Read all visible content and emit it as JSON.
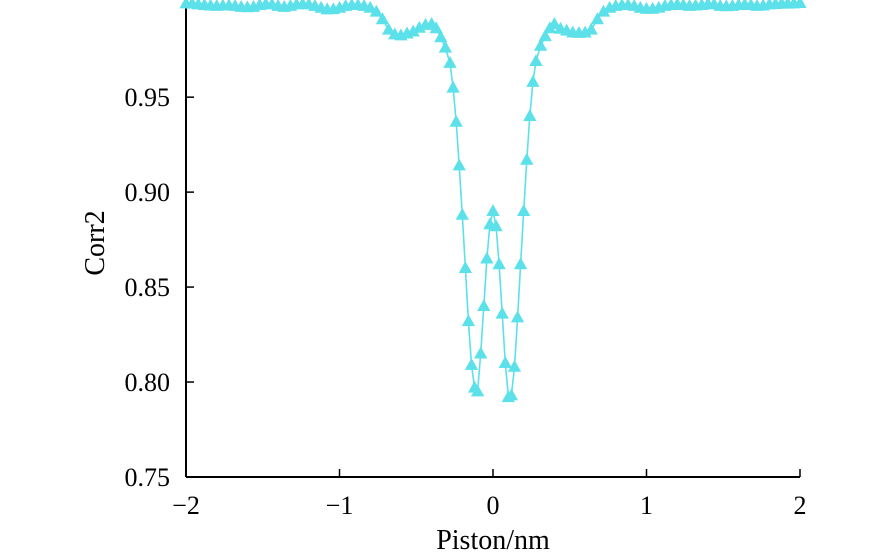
{
  "chart_data": {
    "type": "line",
    "xlabel": "Piston/nm",
    "ylabel": "Corr2",
    "xlim": [
      -2,
      2
    ],
    "ylim": [
      0.75,
      1.0
    ],
    "x_ticks": [
      -2,
      -1,
      0,
      1,
      2
    ],
    "x_tick_labels": [
      "−2",
      "−1",
      "0",
      "1",
      "2"
    ],
    "y_ticks": [
      0.75,
      0.8,
      0.85,
      0.9,
      0.95
    ],
    "y_tick_labels": [
      "0.75",
      "0.80",
      "0.85",
      "0.90",
      "0.95"
    ],
    "grid": false,
    "series": [
      {
        "color": "#5ce1ea",
        "marker": "triangle",
        "x": [
          -2.0,
          -1.96,
          -1.92,
          -1.88,
          -1.84,
          -1.8,
          -1.76,
          -1.72,
          -1.68,
          -1.64,
          -1.6,
          -1.56,
          -1.52,
          -1.48,
          -1.44,
          -1.4,
          -1.36,
          -1.32,
          -1.28,
          -1.24,
          -1.2,
          -1.16,
          -1.12,
          -1.08,
          -1.04,
          -1.0,
          -0.96,
          -0.92,
          -0.88,
          -0.84,
          -0.8,
          -0.76,
          -0.72,
          -0.68,
          -0.64,
          -0.6,
          -0.56,
          -0.52,
          -0.48,
          -0.44,
          -0.4,
          -0.37,
          -0.34,
          -0.31,
          -0.28,
          -0.26,
          -0.24,
          -0.22,
          -0.2,
          -0.18,
          -0.16,
          -0.14,
          -0.12,
          -0.1,
          -0.08,
          -0.06,
          -0.04,
          -0.02,
          0.0,
          0.02,
          0.04,
          0.06,
          0.08,
          0.1,
          0.12,
          0.14,
          0.16,
          0.18,
          0.2,
          0.22,
          0.24,
          0.26,
          0.28,
          0.31,
          0.34,
          0.37,
          0.4,
          0.44,
          0.48,
          0.52,
          0.56,
          0.6,
          0.64,
          0.68,
          0.72,
          0.76,
          0.8,
          0.84,
          0.88,
          0.92,
          0.96,
          1.0,
          1.04,
          1.08,
          1.12,
          1.16,
          1.2,
          1.24,
          1.28,
          1.32,
          1.36,
          1.4,
          1.44,
          1.48,
          1.52,
          1.56,
          1.6,
          1.64,
          1.68,
          1.72,
          1.76,
          1.8,
          1.84,
          1.88,
          1.92,
          1.96,
          2.0
        ],
        "y": [
          0.9993,
          0.9992,
          0.9988,
          0.9985,
          0.9982,
          0.998,
          0.9982,
          0.9983,
          0.998,
          0.9975,
          0.9973,
          0.9975,
          0.9985,
          0.999,
          0.9988,
          0.998,
          0.9975,
          0.998,
          0.9988,
          0.999,
          0.9988,
          0.998,
          0.997,
          0.9962,
          0.9963,
          0.997,
          0.998,
          0.9985,
          0.9985,
          0.998,
          0.997,
          0.995,
          0.991,
          0.9855,
          0.983,
          0.9825,
          0.9835,
          0.9845,
          0.9865,
          0.988,
          0.9885,
          0.9862,
          0.9815,
          0.976,
          0.968,
          0.955,
          0.937,
          0.914,
          0.888,
          0.86,
          0.832,
          0.809,
          0.797,
          0.795,
          0.815,
          0.84,
          0.865,
          0.883,
          0.89,
          0.882,
          0.862,
          0.836,
          0.81,
          0.792,
          0.793,
          0.808,
          0.834,
          0.862,
          0.89,
          0.917,
          0.94,
          0.958,
          0.969,
          0.977,
          0.982,
          0.9862,
          0.9885,
          0.986,
          0.985,
          0.984,
          0.9838,
          0.984,
          0.9855,
          0.991,
          0.995,
          0.997,
          0.998,
          0.9985,
          0.9985,
          0.998,
          0.997,
          0.9965,
          0.9965,
          0.997,
          0.998,
          0.9985,
          0.9988,
          0.9985,
          0.998,
          0.9982,
          0.9985,
          0.999,
          0.9988,
          0.998,
          0.9978,
          0.998,
          0.9985,
          0.9988,
          0.9985,
          0.998,
          0.9982,
          0.9988,
          0.999,
          0.9992,
          0.9992,
          0.9993,
          0.9995
        ]
      }
    ]
  }
}
